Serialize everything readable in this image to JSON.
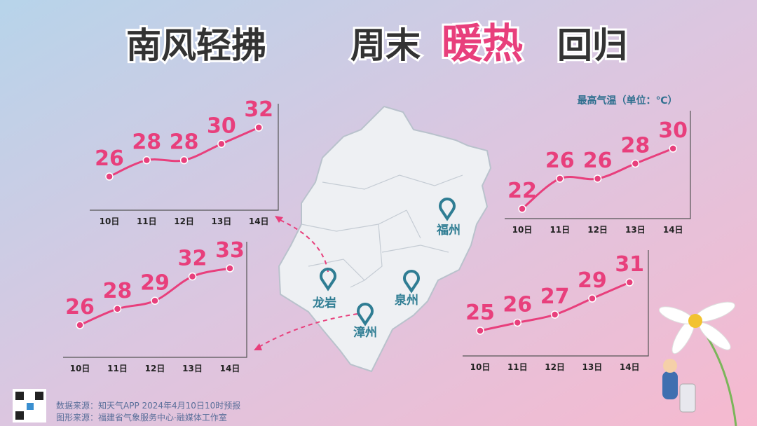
{
  "title_parts": [
    "南风轻拂",
    "周末",
    "暖热",
    "回归"
  ],
  "unit_label": "最高气温（单位：℃）",
  "cities": [
    "龙岩",
    "漳州",
    "泉州",
    "福州"
  ],
  "sources": [
    "数据来源：知天气APP  2024年4月10日10时预报",
    "图形来源：福建省气象服务中心·融媒体工作室"
  ],
  "chart_data": [
    {
      "type": "line",
      "categories": [
        "10日",
        "11日",
        "12日",
        "13日",
        "14日"
      ],
      "series": [
        {
          "color": "#e83f7c",
          "values": [
            26,
            28,
            28,
            30,
            32
          ]
        }
      ]
    },
    {
      "type": "line",
      "categories": [
        "10日",
        "11日",
        "12日",
        "13日",
        "14日"
      ],
      "series": [
        {
          "color": "#e83f7c",
          "values": [
            26,
            28,
            29,
            32,
            33
          ]
        }
      ]
    },
    {
      "type": "line",
      "categories": [
        "10日",
        "11日",
        "12日",
        "13日",
        "14日"
      ],
      "series": [
        {
          "color": "#e83f7c",
          "values": [
            22,
            26,
            26,
            28,
            30
          ]
        }
      ]
    },
    {
      "type": "line",
      "categories": [
        "10日",
        "11日",
        "12日",
        "13日",
        "14日"
      ],
      "series": [
        {
          "color": "#e83f7c",
          "values": [
            25,
            26,
            27,
            29,
            31
          ]
        }
      ]
    }
  ]
}
